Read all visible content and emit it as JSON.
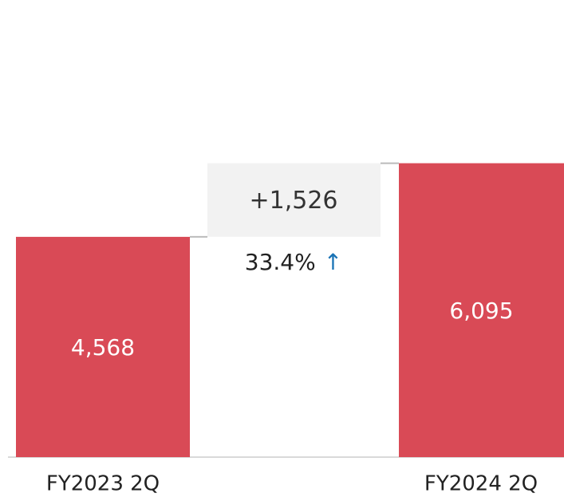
{
  "chart_data": {
    "type": "bar",
    "categories": [
      "FY2023 2Q",
      "FY2024 2Q"
    ],
    "values": [
      4568,
      6095
    ],
    "value_labels": [
      "4,568",
      "6,095"
    ],
    "color": "#d94a56",
    "ylim": [
      0,
      9000
    ],
    "delta_label": "+1,526",
    "percent_label": "33.4%"
  }
}
